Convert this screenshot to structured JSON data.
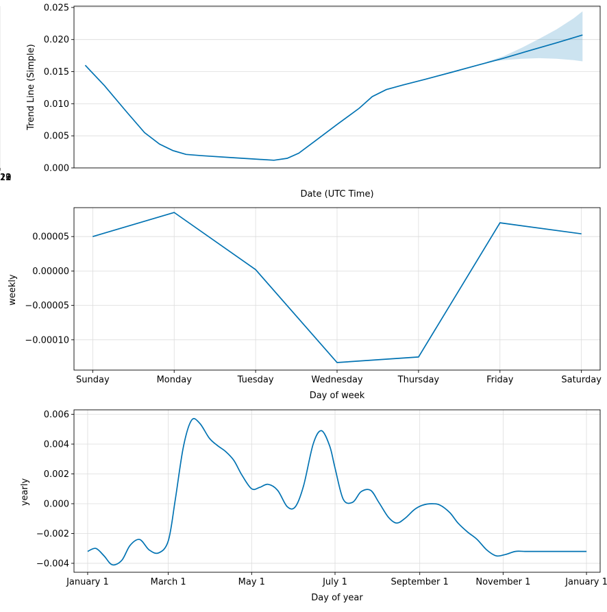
{
  "colors": {
    "line": "#0072B2",
    "band": "#0072B2",
    "grid": "#dcdcdc"
  },
  "chart_data": [
    {
      "type": "line",
      "xlabel": "Date (UTC Time)",
      "ylabel": "Trend Line (Simple)",
      "x_axis": "date",
      "xlim": [
        "2018-06-01",
        "2023-06-01"
      ],
      "ylim": [
        0.0,
        0.0252
      ],
      "xticks": [
        {
          "value": "2019-01-01",
          "label": "2019"
        },
        {
          "value": "2020-01-01",
          "label": "2020"
        },
        {
          "value": "2021-01-01",
          "label": "2021"
        },
        {
          "value": "2022-01-01",
          "label": "2022"
        },
        {
          "value": "2023-01-01",
          "label": "2023"
        }
      ],
      "yticks": [
        {
          "value": 0.0,
          "label": "0.000"
        },
        {
          "value": 0.005,
          "label": "0.005"
        },
        {
          "value": 0.01,
          "label": "0.010"
        },
        {
          "value": 0.015,
          "label": "0.015"
        },
        {
          "value": 0.02,
          "label": "0.020"
        },
        {
          "value": 0.025,
          "label": "0.025"
        }
      ],
      "grid": true,
      "series": [
        {
          "style": "line",
          "x": [
            "2018-07-10",
            "2018-09-15",
            "2018-12-01",
            "2019-02-01",
            "2019-03-25",
            "2019-05-10",
            "2019-06-25",
            "2019-08-20",
            "2019-12-01",
            "2020-02-10",
            "2020-04-25",
            "2020-06-10",
            "2020-07-20",
            "2020-09-15",
            "2020-12-01",
            "2021-02-15",
            "2021-04-01",
            "2021-05-20",
            "2021-07-15",
            "2021-10-01",
            "2022-01-01",
            "2022-04-01",
            "2022-07-01",
            "2022-10-01",
            "2023-01-01",
            "2023-04-01"
          ],
          "values": [
            0.016,
            0.0128,
            0.0087,
            0.0055,
            0.0037,
            0.0027,
            0.0021,
            0.0019,
            0.0016,
            0.0014,
            0.0012,
            0.0015,
            0.0023,
            0.0042,
            0.0068,
            0.0093,
            0.0111,
            0.0122,
            0.0129,
            0.0138,
            0.0149,
            0.016,
            0.0171,
            0.0183,
            0.0195,
            0.0207
          ]
        },
        {
          "style": "band",
          "x": [
            "2022-05-01",
            "2022-07-01",
            "2022-09-01",
            "2022-11-01",
            "2023-01-01",
            "2023-03-01",
            "2023-04-01"
          ],
          "upper": [
            0.0165,
            0.0174,
            0.0187,
            0.0201,
            0.0216,
            0.0233,
            0.0244
          ],
          "lower": [
            0.0165,
            0.0168,
            0.017,
            0.0171,
            0.017,
            0.0168,
            0.0166
          ]
        }
      ]
    },
    {
      "type": "line",
      "xlabel": "Day of week",
      "ylabel": "weekly",
      "categories": [
        "Sunday",
        "Monday",
        "Tuesday",
        "Wednesday",
        "Thursday",
        "Friday",
        "Saturday"
      ],
      "values": [
        5e-05,
        8.5e-05,
        2e-06,
        -0.000133,
        -0.000125,
        7e-05,
        5.4e-05
      ],
      "ylim": [
        -0.000144,
        9.2e-05
      ],
      "yticks": [
        {
          "value": 5e-05,
          "label": "0.00005"
        },
        {
          "value": 0.0,
          "label": "0.00000"
        },
        {
          "value": -5e-05,
          "label": "−0.00005"
        },
        {
          "value": -0.0001,
          "label": "−0.00010"
        }
      ],
      "grid": true
    },
    {
      "type": "line",
      "xlabel": "Day of year",
      "ylabel": "yearly",
      "x_axis": "day_of_year",
      "xlim": [
        -10,
        375
      ],
      "ylim": [
        -0.0046,
        0.0063
      ],
      "xticks": [
        {
          "value": 0,
          "label": "January 1"
        },
        {
          "value": 59,
          "label": "March 1"
        },
        {
          "value": 120,
          "label": "May 1"
        },
        {
          "value": 181,
          "label": "July 1"
        },
        {
          "value": 243,
          "label": "September 1"
        },
        {
          "value": 304,
          "label": "November 1"
        },
        {
          "value": 365,
          "label": "January 1"
        }
      ],
      "yticks": [
        {
          "value": -0.004,
          "label": "−0.004"
        },
        {
          "value": -0.002,
          "label": "−0.002"
        },
        {
          "value": 0.0,
          "label": "0.000"
        },
        {
          "value": 0.002,
          "label": "0.002"
        },
        {
          "value": 0.004,
          "label": "0.004"
        },
        {
          "value": 0.006,
          "label": "0.006"
        }
      ],
      "grid": true,
      "x": [
        0,
        6,
        12,
        18,
        25,
        31,
        38,
        45,
        52,
        59,
        64,
        70,
        76,
        82,
        89,
        95,
        101,
        107,
        113,
        120,
        126,
        132,
        139,
        146,
        152,
        158,
        165,
        171,
        177,
        181,
        187,
        194,
        200,
        207,
        213,
        220,
        226,
        232,
        239,
        245,
        252,
        258,
        265,
        271,
        278,
        285,
        292,
        299,
        306,
        313,
        320,
        327,
        334,
        340,
        347,
        353,
        360,
        365
      ],
      "values": [
        -0.0032,
        -0.003,
        -0.0035,
        -0.0041,
        -0.0038,
        -0.0028,
        -0.0024,
        -0.0031,
        -0.0033,
        -0.0025,
        0.0002,
        0.0038,
        0.0056,
        0.0054,
        0.0044,
        0.0039,
        0.0035,
        0.0029,
        0.0019,
        0.001,
        0.0011,
        0.0013,
        0.0009,
        -0.0002,
        -0.0002,
        0.0012,
        0.004,
        0.0049,
        0.0039,
        0.0024,
        0.0003,
        0.0001,
        0.0008,
        0.0009,
        0.0001,
        -0.0009,
        -0.0013,
        -0.001,
        -0.0004,
        -0.0001,
        0.0,
        -0.0001,
        -0.0006,
        -0.0013,
        -0.0019,
        -0.0024,
        -0.0031,
        -0.0035,
        -0.0034,
        -0.0032,
        -0.0032,
        -0.0032,
        -0.0032,
        -0.0032,
        -0.0032,
        -0.0032,
        -0.0032,
        -0.0032
      ]
    }
  ]
}
